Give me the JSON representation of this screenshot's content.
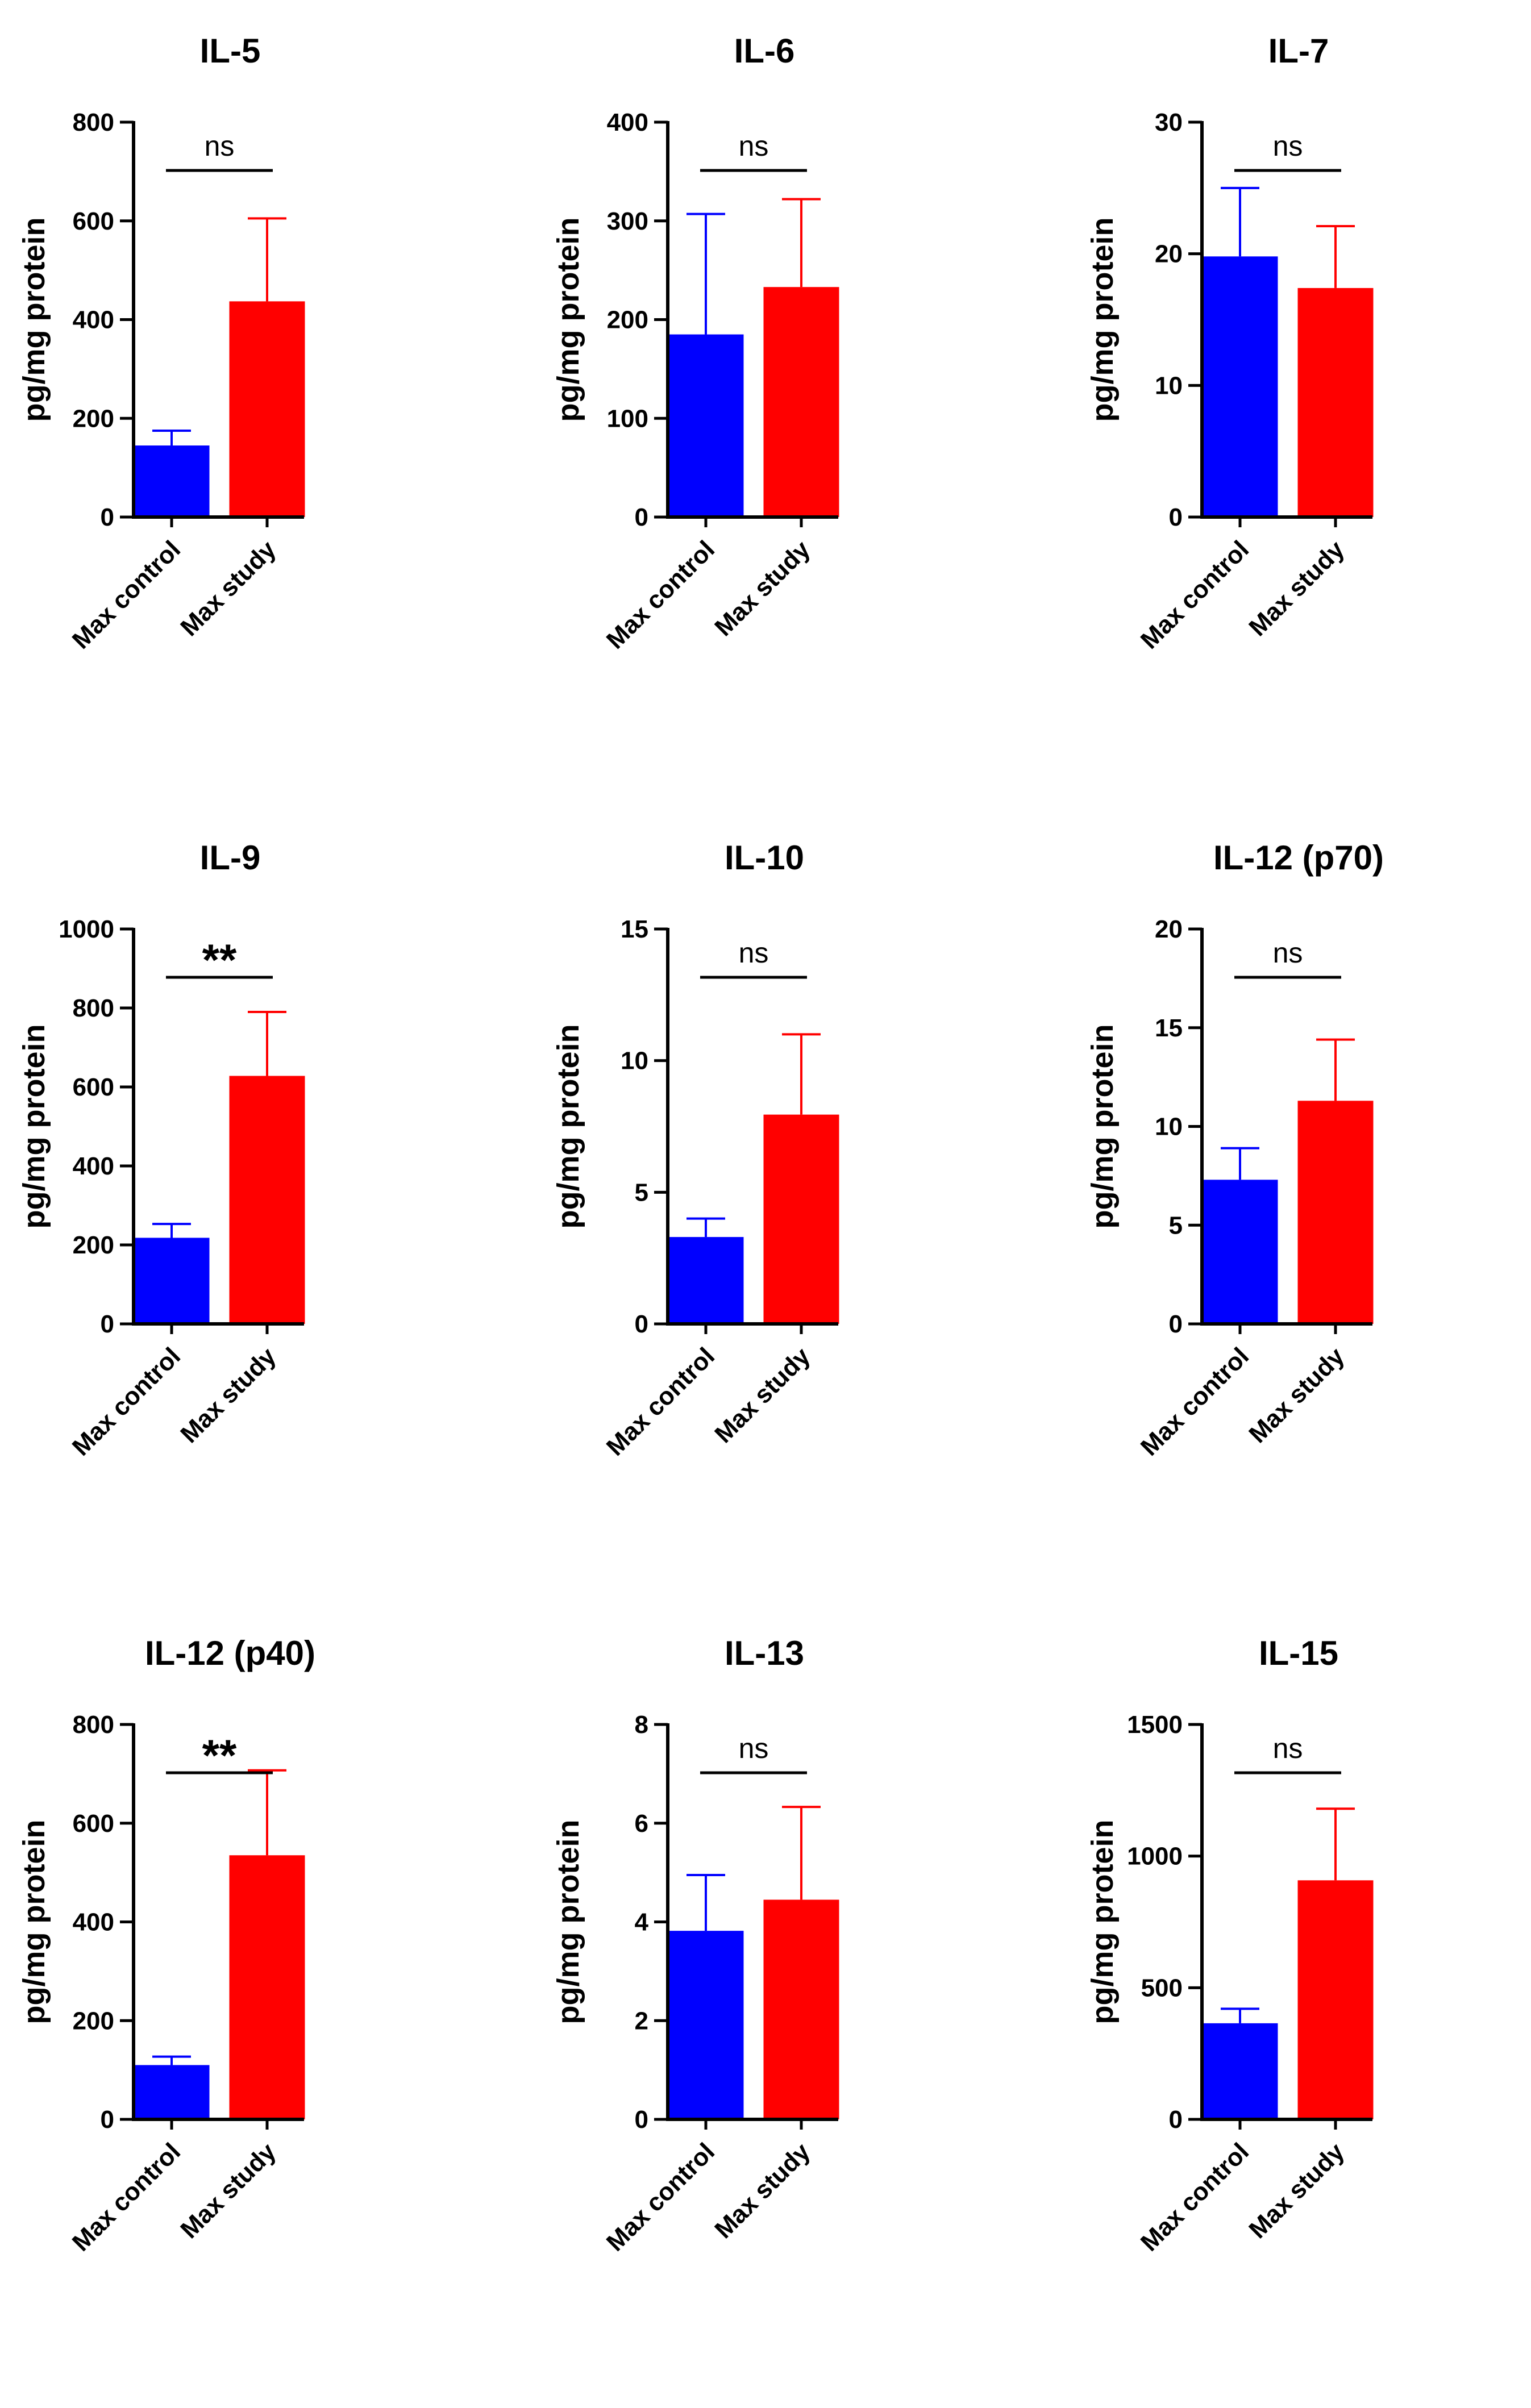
{
  "colors": {
    "control": "#0000ff",
    "study": "#ff0000",
    "axis": "#000000"
  },
  "chart_data": [
    {
      "type": "bar",
      "title": "IL-5",
      "ylabel": "pg/mg protein",
      "xlabel": "",
      "categories": [
        "Max control",
        "Max study"
      ],
      "values": [
        145,
        437
      ],
      "errors": [
        30,
        168
      ],
      "ylim": [
        0,
        800
      ],
      "yticks": [
        0,
        200,
        400,
        600,
        800
      ],
      "yticklabels": [
        "0",
        "200",
        "400",
        "600",
        "800"
      ],
      "significance": "ns"
    },
    {
      "type": "bar",
      "title": "IL-6",
      "ylabel": "pg/mg protein",
      "xlabel": "",
      "categories": [
        "Max control",
        "Max study"
      ],
      "values": [
        185,
        233
      ],
      "errors": [
        122,
        89
      ],
      "ylim": [
        0,
        400
      ],
      "yticks": [
        0,
        100,
        200,
        300,
        400
      ],
      "yticklabels": [
        "0",
        "100",
        "200",
        "300",
        "400"
      ],
      "significance": "ns"
    },
    {
      "type": "bar",
      "title": "IL-7",
      "ylabel": "pg/mg protein",
      "xlabel": "",
      "categories": [
        "Max control",
        "Max study"
      ],
      "values": [
        19.8,
        17.4
      ],
      "errors": [
        5.2,
        4.7
      ],
      "ylim": [
        0,
        30
      ],
      "yticks": [
        0,
        10,
        20,
        30
      ],
      "yticklabels": [
        "0",
        "10",
        "20",
        "30"
      ],
      "significance": "ns"
    },
    {
      "type": "bar",
      "title": "IL-9",
      "ylabel": "pg/mg protein",
      "xlabel": "",
      "categories": [
        "Max control",
        "Max study"
      ],
      "values": [
        218,
        628
      ],
      "errors": [
        35,
        162
      ],
      "ylim": [
        0,
        1000
      ],
      "yticks": [
        0,
        200,
        400,
        600,
        800,
        1000
      ],
      "yticklabels": [
        "0",
        "200",
        "400",
        "600",
        "800",
        "1000"
      ],
      "significance": "**"
    },
    {
      "type": "bar",
      "title": "IL-10",
      "ylabel": "pg/mg protein",
      "xlabel": "",
      "categories": [
        "Max control",
        "Max study"
      ],
      "values": [
        3.3,
        7.95
      ],
      "errors": [
        0.7,
        3.05
      ],
      "ylim": [
        0,
        15
      ],
      "yticks": [
        0,
        5,
        10,
        15
      ],
      "yticklabels": [
        "0",
        "5",
        "10",
        "15"
      ],
      "significance": "ns"
    },
    {
      "type": "bar",
      "title": "IL-12 (p70)",
      "ylabel": "pg/mg protein",
      "xlabel": "",
      "categories": [
        "Max control",
        "Max study"
      ],
      "values": [
        7.3,
        11.3
      ],
      "errors": [
        1.6,
        3.1
      ],
      "ylim": [
        0,
        20
      ],
      "yticks": [
        0,
        5,
        10,
        15,
        20
      ],
      "yticklabels": [
        "0",
        "5",
        "10",
        "15",
        "20"
      ],
      "significance": "ns"
    },
    {
      "type": "bar",
      "title": "IL-12 (p40)",
      "ylabel": "pg/mg protein",
      "xlabel": "",
      "categories": [
        "Max control",
        "Max study"
      ],
      "values": [
        110,
        535
      ],
      "errors": [
        17,
        172
      ],
      "ylim": [
        0,
        800
      ],
      "yticks": [
        0,
        200,
        400,
        600,
        800
      ],
      "yticklabels": [
        "0",
        "200",
        "400",
        "600",
        "800"
      ],
      "significance": "**"
    },
    {
      "type": "bar",
      "title": "IL-13",
      "ylabel": "pg/mg protein",
      "xlabel": "",
      "categories": [
        "Max control",
        "Max study"
      ],
      "values": [
        3.82,
        4.45
      ],
      "errors": [
        1.13,
        1.88
      ],
      "ylim": [
        0,
        8
      ],
      "yticks": [
        0,
        2,
        4,
        6,
        8
      ],
      "yticklabels": [
        "0",
        "2",
        "4",
        "6",
        "8"
      ],
      "significance": "ns"
    },
    {
      "type": "bar",
      "title": "IL-15",
      "ylabel": "pg/mg protein",
      "xlabel": "",
      "categories": [
        "Max control",
        "Max study"
      ],
      "values": [
        365,
        908
      ],
      "errors": [
        55,
        272
      ],
      "ylim": [
        0,
        1500
      ],
      "yticks": [
        0,
        500,
        1000,
        1500
      ],
      "yticklabels": [
        "0",
        "500",
        "1000",
        "1500"
      ],
      "significance": "ns"
    }
  ]
}
